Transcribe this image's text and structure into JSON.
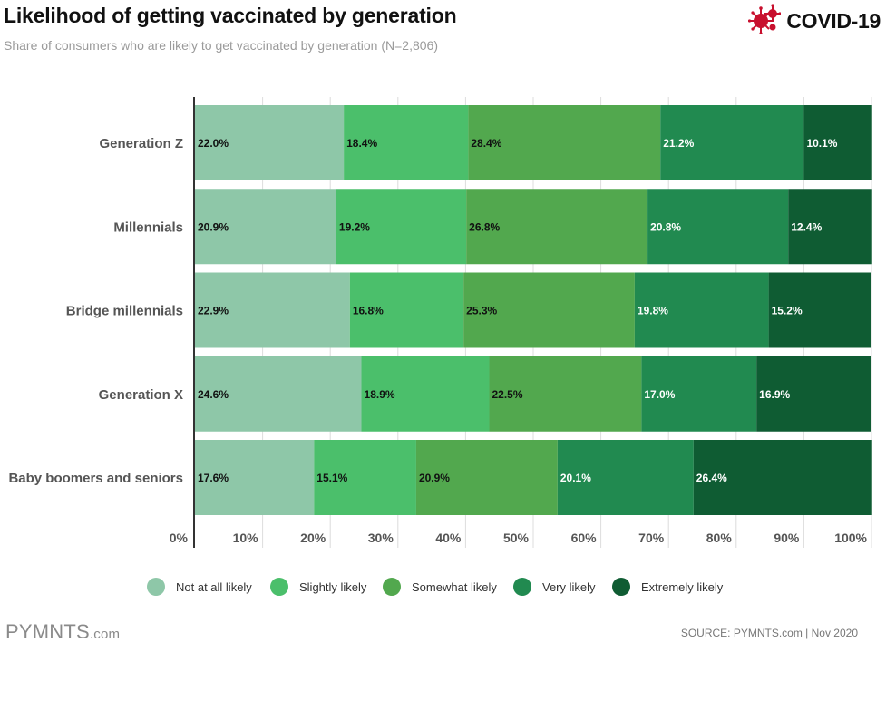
{
  "header": {
    "title": "Likelihood of getting vaccinated by generation",
    "subtitle": "Share of consumers who are likely to get vaccinated by generation (N=2,806)",
    "badge_label": "COVID-19",
    "badge_icon": "virus-icon"
  },
  "footer": {
    "logo_main": "PYMNTS",
    "logo_suffix": ".com",
    "source": "SOURCE: PYMNTS.com  |  Nov 2020"
  },
  "colors": {
    "not_at_all": "#8ec7a8",
    "slightly": "#4bbf6b",
    "somewhat": "#52a84e",
    "very": "#218a50",
    "extremely": "#0f5c33",
    "badge": "#c8102e"
  },
  "chart_data": {
    "type": "bar",
    "orientation": "horizontal",
    "stacked": true,
    "categories": [
      "Generation Z",
      "Millennials",
      "Bridge millennials",
      "Generation X",
      "Baby boomers and seniors"
    ],
    "series": [
      {
        "name": "Not at all likely",
        "color": "#8ec7a8",
        "label_color": "#111111",
        "values": [
          22.0,
          20.9,
          22.9,
          24.6,
          17.6
        ]
      },
      {
        "name": "Slightly likely",
        "color": "#4bbf6b",
        "label_color": "#111111",
        "values": [
          18.4,
          19.2,
          16.8,
          18.9,
          15.1
        ]
      },
      {
        "name": "Somewhat likely",
        "color": "#52a84e",
        "label_color": "#111111",
        "values": [
          28.4,
          26.8,
          25.3,
          22.5,
          20.9
        ]
      },
      {
        "name": "Very likely",
        "color": "#218a50",
        "label_color": "#ffffff",
        "values": [
          21.2,
          20.8,
          19.8,
          17.0,
          20.1
        ]
      },
      {
        "name": "Extremely likely",
        "color": "#0f5c33",
        "label_color": "#ffffff",
        "values": [
          10.1,
          12.4,
          15.2,
          16.9,
          26.4
        ]
      }
    ],
    "data_labels": [
      [
        "22.0%",
        "18.4%",
        "28.4%",
        "21.2%",
        "10.1%"
      ],
      [
        "20.9%",
        "19.2%",
        "26.8%",
        "20.8%",
        "12.4%"
      ],
      [
        "22.9%",
        "16.8%",
        "25.3%",
        "19.8%",
        "15.2%"
      ],
      [
        "24.6%",
        "18.9%",
        "22.5%",
        "17.0%",
        "16.9%"
      ],
      [
        "17.6%",
        "15.1%",
        "20.9%",
        "20.1%",
        "26.4%"
      ]
    ],
    "xlim": [
      0,
      100
    ],
    "xticks": [
      0,
      10,
      20,
      30,
      40,
      50,
      60,
      70,
      80,
      90,
      100
    ],
    "xtick_labels": [
      "0%",
      "10%",
      "20%",
      "30%",
      "40%",
      "50%",
      "60%",
      "70%",
      "80%",
      "90%",
      "100%"
    ],
    "xlabel": "",
    "ylabel": "",
    "grid": true,
    "legend_position": "bottom"
  }
}
